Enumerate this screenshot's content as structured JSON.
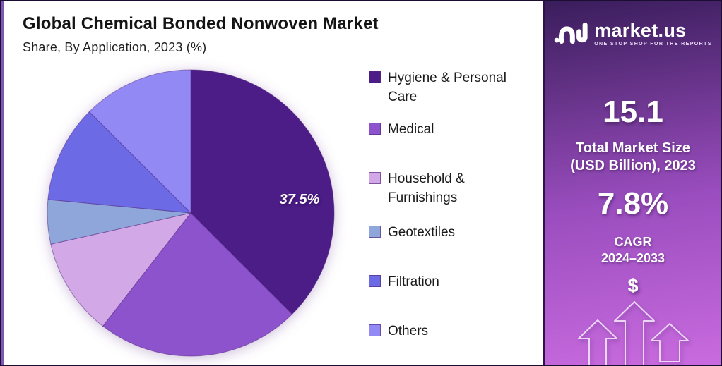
{
  "header": {
    "title": "Global Chemical Bonded Nonwoven Market",
    "subtitle": "Share, By Application, 2023 (%)"
  },
  "chart_data": {
    "type": "pie",
    "title": "Global Chemical Bonded Nonwoven Market",
    "subtitle": "Share, By Application, 2023 (%)",
    "unit": "percent",
    "start_angle_deg": 0,
    "direction": "clockwise",
    "legend_position": "right",
    "categories": [
      "Hygiene & Personal Care",
      "Medical",
      "Household & Furnishings",
      "Geotextiles",
      "Filtration",
      "Others"
    ],
    "values": [
      37.5,
      23,
      11,
      5,
      11,
      12.5
    ],
    "colors": [
      "#4C1C87",
      "#8C53CC",
      "#D2A9E6",
      "#8FA6DB",
      "#6C6AE4",
      "#9389F4"
    ],
    "label_text": "37.5%",
    "labeled_slice": "Hygiene & Personal Care"
  },
  "side_panel": {
    "brand": {
      "name": "market.us",
      "tagline": "ONE STOP SHOP FOR THE REPORTS"
    },
    "market_size_value": "15.1",
    "market_size_label_line1": "Total Market Size",
    "market_size_label_line2": "(USD Billion), 2023",
    "cagr_value": "7.8%",
    "cagr_label_line1": "CAGR",
    "cagr_label_line2": "2024–2033",
    "currency_symbol": "$",
    "gradient": {
      "top": "#3A1D5C",
      "mid": "#9A4DBE",
      "bottom": "#C96BDF"
    }
  }
}
